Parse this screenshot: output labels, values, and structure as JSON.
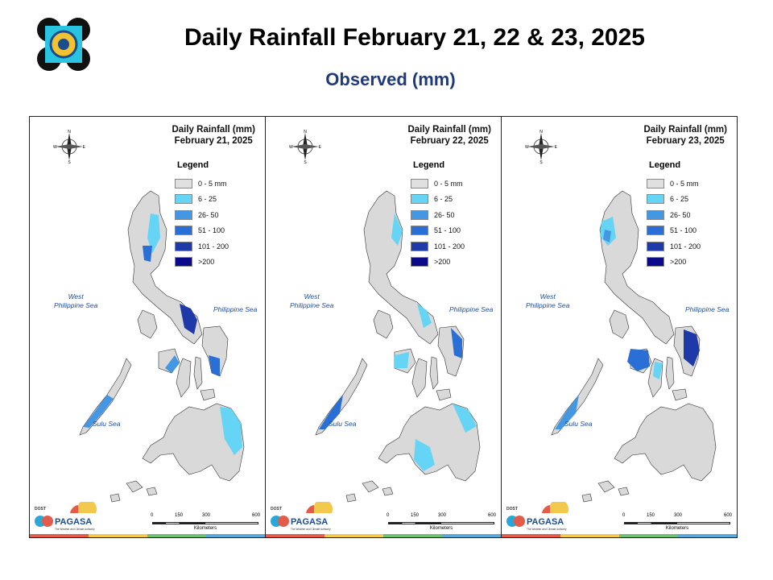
{
  "header": {
    "title": "Daily Rainfall February 21, 22 & 23, 2025",
    "subtitle": "Observed (mm)"
  },
  "legend": {
    "title": "Legend",
    "classes": [
      {
        "label": "0 - 5 mm",
        "color": "#e0e0e0"
      },
      {
        "label": "6 - 25",
        "color": "#66d4f5"
      },
      {
        "label": "26- 50",
        "color": "#4497e3"
      },
      {
        "label": "51 - 100",
        "color": "#2a6fd6"
      },
      {
        "label": "101 - 200",
        "color": "#1e3aa8"
      },
      {
        "label": ">200",
        "color": "#0a0a8a"
      }
    ]
  },
  "maps": [
    {
      "title_line1": "Daily Rainfall (mm)",
      "title_line2": "February 21, 2025"
    },
    {
      "title_line1": "Daily Rainfall (mm)",
      "title_line2": "February 22, 2025"
    },
    {
      "title_line1": "Daily Rainfall (mm)",
      "title_line2": "February 23, 2025"
    }
  ],
  "sea_labels": {
    "west_line1": "West",
    "west_line2": "Philippine Sea",
    "philippine": "Philippine Sea",
    "sulu": "Sulu Sea"
  },
  "compass": {
    "n": "N",
    "s": "S",
    "e": "E",
    "w": "W"
  },
  "scale": {
    "ticks": [
      "0",
      "150",
      "300",
      "600"
    ],
    "unit": "Kilometers"
  },
  "pagasa": {
    "org": "PAGASA",
    "prefix": "DOST",
    "tagline": "The Weather and Climate Authority"
  },
  "colors": {
    "land": "#d9d9d9",
    "footer": [
      "#e25b4b",
      "#f2c94c",
      "#6fbf73",
      "#5aa7d8"
    ]
  }
}
